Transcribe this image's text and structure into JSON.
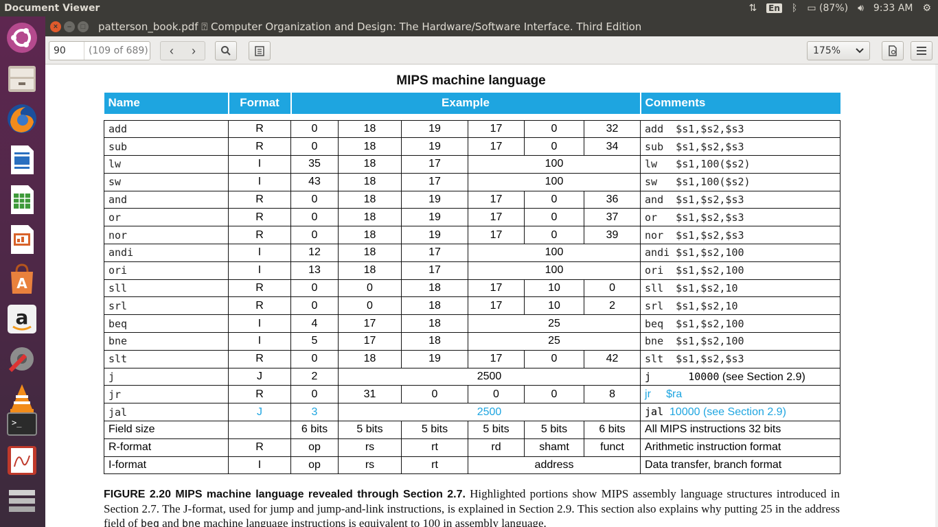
{
  "top_panel": {
    "app_name": "Document Viewer",
    "keyboard": "En",
    "battery": "(87%)",
    "time": "9:33 AM"
  },
  "launcher": {
    "items": [
      "ubuntu-dash-icon",
      "files-icon",
      "firefox-icon",
      "writer-icon",
      "calc-icon",
      "impress-icon",
      "software-center-icon",
      "amazon-icon",
      "system-settings-icon",
      "vlc-icon",
      "terminal-icon",
      "document-viewer-icon",
      "workspaces-icon"
    ]
  },
  "window": {
    "title": "patterson_book.pdf ⍰ Computer Organization and Design: The Hardware/Software Interface. Third Edition",
    "filename": "patterson_book.pdf",
    "doc_title": "Computer Organization and Design: The Hardware/Software Interface. Third Edition"
  },
  "toolbar": {
    "page_value": "90",
    "page_total": "(109 of 689)",
    "zoom": "175%"
  },
  "document": {
    "title": "MIPS machine language",
    "headers": {
      "name": "Name",
      "format": "Format",
      "example": "Example",
      "comments": "Comments"
    },
    "rows": [
      {
        "name": "add",
        "format": "R",
        "f": [
          "0",
          "18",
          "19",
          "17",
          "0",
          "32"
        ],
        "comment": "add  $s1,$s2,$s3"
      },
      {
        "name": "sub",
        "format": "R",
        "f": [
          "0",
          "18",
          "19",
          "17",
          "0",
          "34"
        ],
        "comment": "sub  $s1,$s2,$s3"
      },
      {
        "name": "lw",
        "format": "I",
        "f": [
          "35",
          "18",
          "17",
          "100"
        ],
        "comment": "lw   $s1,100($s2)"
      },
      {
        "name": "sw",
        "format": "I",
        "f": [
          "43",
          "18",
          "17",
          "100"
        ],
        "comment": "sw   $s1,100($s2)"
      },
      {
        "name": "and",
        "format": "R",
        "f": [
          "0",
          "18",
          "19",
          "17",
          "0",
          "36"
        ],
        "comment": "and  $s1,$s2,$s3"
      },
      {
        "name": "or",
        "format": "R",
        "f": [
          "0",
          "18",
          "19",
          "17",
          "0",
          "37"
        ],
        "comment": "or   $s1,$s2,$s3"
      },
      {
        "name": "nor",
        "format": "R",
        "f": [
          "0",
          "18",
          "19",
          "17",
          "0",
          "39"
        ],
        "comment": "nor  $s1,$s2,$s3"
      },
      {
        "name": "andi",
        "format": "I",
        "f": [
          "12",
          "18",
          "17",
          "100"
        ],
        "comment": "andi $s1,$s2,100"
      },
      {
        "name": "ori",
        "format": "I",
        "f": [
          "13",
          "18",
          "17",
          "100"
        ],
        "comment": "ori  $s1,$s2,100"
      },
      {
        "name": "sll",
        "format": "R",
        "f": [
          "0",
          "0",
          "18",
          "17",
          "10",
          "0"
        ],
        "comment": "sll  $s1,$s2,10"
      },
      {
        "name": "srl",
        "format": "R",
        "f": [
          "0",
          "0",
          "18",
          "17",
          "10",
          "2"
        ],
        "comment": "srl  $s1,$s2,10"
      },
      {
        "name": "beq",
        "format": "I",
        "f": [
          "4",
          "17",
          "18",
          "25"
        ],
        "comment": "beq  $s1,$s2,100"
      },
      {
        "name": "bne",
        "format": "I",
        "f": [
          "5",
          "17",
          "18",
          "25"
        ],
        "comment": "bne  $s1,$s2,100"
      },
      {
        "name": "slt",
        "format": "R",
        "f": [
          "0",
          "18",
          "19",
          "17",
          "0",
          "42"
        ],
        "comment": "slt  $s1,$s2,$s3"
      }
    ],
    "row_j": {
      "name": "j",
      "format": "J",
      "op": "2",
      "addr": "2500",
      "comment_mono": "j      10000",
      "comment_text": " (see Section 2.9)"
    },
    "row_jr": {
      "name": "jr",
      "format": "R",
      "f": [
        "0",
        "31",
        "0",
        "0",
        "0",
        "8"
      ],
      "comment_instr": "jr",
      "comment_arg": "$ra"
    },
    "row_jal": {
      "name": "jal",
      "format": "J",
      "op": "3",
      "addr": "2500",
      "comment_mono": "jal",
      "comment_text": "10000 (see Section 2.9)"
    },
    "field_size": {
      "label": "Field size",
      "f": [
        "6 bits",
        "5 bits",
        "5 bits",
        "5 bits",
        "5 bits",
        "6 bits"
      ],
      "comment": "All MIPS instructions 32 bits"
    },
    "r_format": {
      "label": "R-format",
      "format": "R",
      "f": [
        "op",
        "rs",
        "rt",
        "rd",
        "shamt",
        "funct"
      ],
      "comment": "Arithmetic instruction format"
    },
    "i_format": {
      "label": "I-format",
      "format": "I",
      "f": [
        "op",
        "rs",
        "rt",
        "address"
      ],
      "comment": "Data transfer, branch format"
    },
    "caption": {
      "label": "FIGURE 2.20   MIPS machine language revealed through Section 2.7.",
      "text1": " Highlighted portions show MIPS assembly language structures introduced in Section 2.7. The J-format, used for jump and jump-and-link instructions, is explained in Section 2.9. This section also explains why putting 25 in the address field of ",
      "beq": "beq",
      "and": " and ",
      "bne": "bne",
      "text2": " machine language instructions is equivalent to 100 in assembly language."
    }
  },
  "colors": {
    "accent_blue": "#1ea5e0",
    "panel": "#3c3b37",
    "launcher": "#5e2750"
  }
}
